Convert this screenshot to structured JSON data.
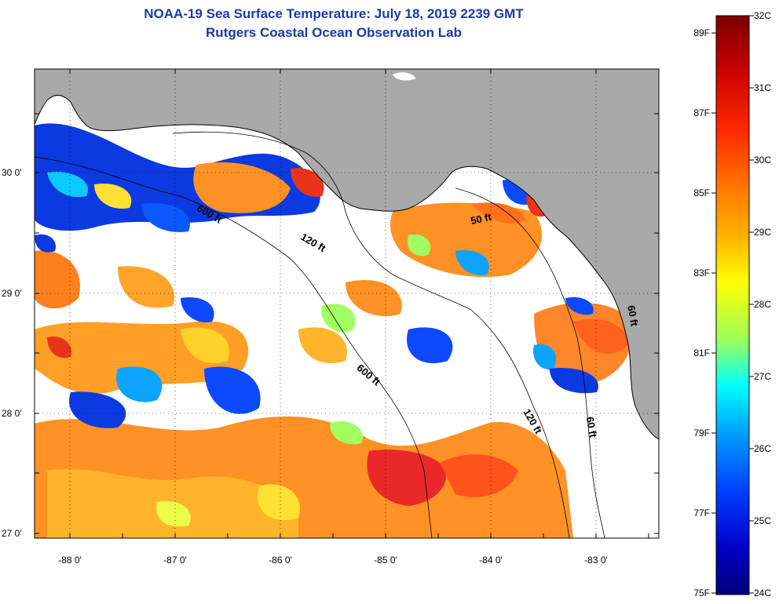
{
  "title": {
    "line1": "NOAA-19 Sea Surface Temperature:  July 18, 2019 2239 GMT",
    "line2": "Rutgers Coastal Ocean Observation Lab"
  },
  "map": {
    "lat_ticks": [
      "30 0'",
      "29 0'",
      "28 0'",
      "27 0'"
    ],
    "lon_ticks": [
      "-88 0'",
      "-87 0'",
      "-86 0'",
      "-85 0'",
      "-84 0'",
      "-83 0'"
    ],
    "contour_labels": [
      "600 ft",
      "120 ft",
      "50 ft",
      "600 ft",
      "120 ft",
      "60 ft",
      "60 ft"
    ],
    "colors": {
      "land": "#a9a9a9",
      "cloud": "#ffffff",
      "frame": "#000000"
    }
  },
  "colorbar": {
    "celsius": [
      "32C",
      "31C",
      "30C",
      "29C",
      "28C",
      "27C",
      "26C",
      "25C",
      "24C"
    ],
    "fahrenheit": [
      "89F",
      "87F",
      "85F",
      "83F",
      "81F",
      "79F",
      "77F",
      "75F"
    ],
    "stops": [
      "#7a0000",
      "#c80000",
      "#ff2a00",
      "#ff7a00",
      "#ffb000",
      "#ffff00",
      "#9cff5a",
      "#00ffff",
      "#00a0ff",
      "#0040ff",
      "#0000c8",
      "#00007a"
    ]
  }
}
